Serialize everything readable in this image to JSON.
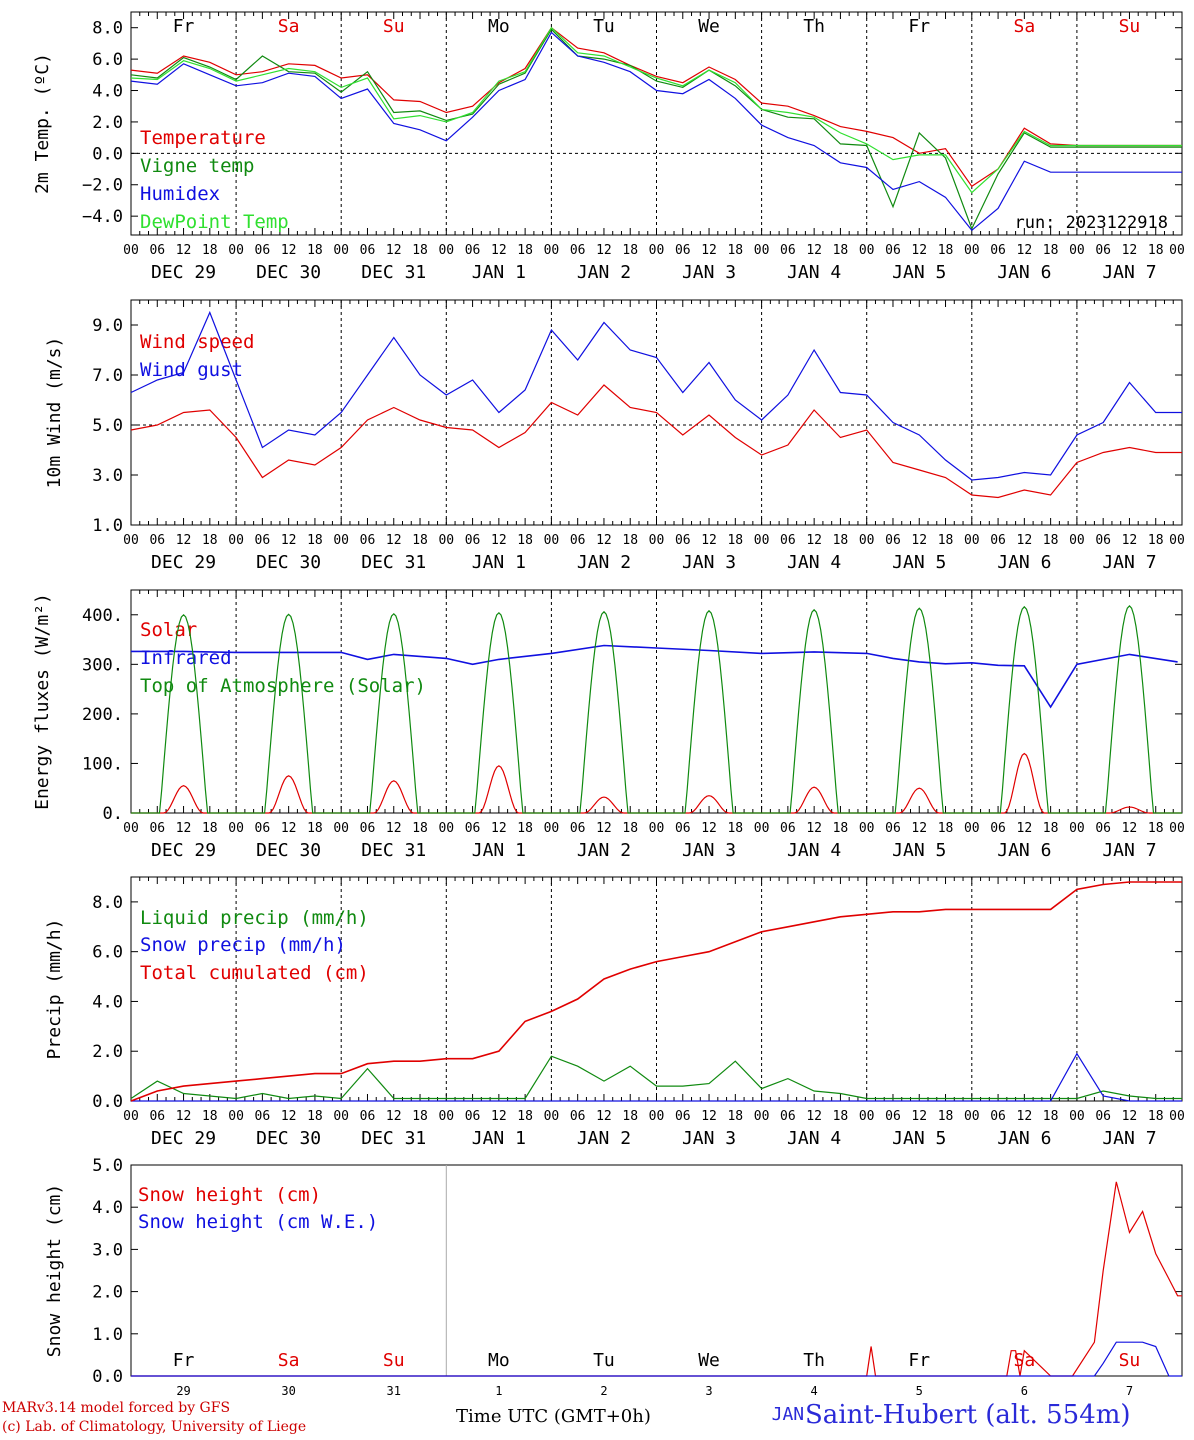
{
  "run_label": "run: 2023122918",
  "date_labels": [
    "DEC 29",
    "DEC 30",
    "DEC 31",
    "JAN  1",
    "JAN  2",
    "JAN  3",
    "JAN  4",
    "JAN  5",
    "JAN  6",
    "JAN  7"
  ],
  "hour_ticks": [
    "00",
    "06",
    "12",
    "18"
  ],
  "hour_tick_end": "00",
  "weekdays": [
    {
      "label": "Fr",
      "color": "#000000"
    },
    {
      "label": "Sa",
      "color": "#e00000"
    },
    {
      "label": "Su",
      "color": "#e00000"
    },
    {
      "label": "Mo",
      "color": "#000000"
    },
    {
      "label": "Tu",
      "color": "#000000"
    },
    {
      "label": "We",
      "color": "#000000"
    },
    {
      "label": "Th",
      "color": "#000000"
    },
    {
      "label": "Fr",
      "color": "#000000"
    },
    {
      "label": "Sa",
      "color": "#e00000"
    },
    {
      "label": "Su",
      "color": "#e00000"
    }
  ],
  "bottom_day_numbers": [
    "29",
    "30",
    "31",
    "1",
    "2",
    "3",
    "4",
    "5",
    "6",
    "7"
  ],
  "bottom_month_label": "JAN",
  "footer": {
    "credit_line1": "MARv3.14 model forced by GFS",
    "credit_line2": "(c) Lab. of Climatology, University of Liege",
    "time_axis": "Time UTC (GMT+0h)",
    "station": "Saint-Hubert (alt. 554m)"
  },
  "colors": {
    "red": "#e00000",
    "green": "#108a10",
    "blue": "#1010e0",
    "light_green": "#30e030"
  },
  "chart_data": [
    {
      "type": "line",
      "ylabel": "2m Temp. (ºC)",
      "ylim": [
        -5.2,
        9.0
      ],
      "yticks": [
        8.0,
        6.0,
        4.0,
        2.0,
        0.0,
        -2.0,
        -4.0
      ],
      "ytick_labels": [
        "8.0",
        "6.0",
        "4.0",
        "2.0",
        "0.0",
        "−2.0",
        "−4.0"
      ],
      "refline": 0,
      "x_hours": [
        0,
        6,
        12,
        18,
        24,
        30,
        36,
        42,
        48,
        54,
        60,
        66,
        72,
        78,
        84,
        90,
        96,
        102,
        108,
        114,
        120,
        126,
        132,
        138,
        144,
        150,
        156,
        162,
        168,
        174,
        180,
        186,
        192,
        198,
        204,
        210,
        216,
        222,
        228,
        234
      ],
      "series": [
        {
          "name": "Temperature",
          "color": "#e00000",
          "values": [
            5.3,
            5.1,
            6.2,
            5.8,
            5.0,
            5.2,
            5.7,
            5.6,
            4.8,
            5.0,
            3.4,
            3.3,
            2.6,
            3.0,
            4.5,
            5.4,
            8.0,
            6.7,
            6.4,
            5.6,
            4.9,
            4.5,
            5.5,
            4.7,
            3.2,
            3.0,
            2.4,
            1.7,
            1.4,
            1.0,
            0.0,
            0.3,
            -2.1,
            -1.0,
            1.6,
            0.6,
            0.5,
            0.5,
            0.5,
            0.5
          ]
        },
        {
          "name": "Vigne temp",
          "color": "#108a10",
          "values": [
            5.0,
            4.8,
            6.1,
            5.5,
            4.7,
            6.2,
            5.2,
            5.1,
            3.9,
            5.2,
            2.6,
            2.7,
            2.1,
            2.5,
            4.4,
            5.1,
            7.9,
            6.2,
            6.0,
            5.6,
            4.6,
            4.2,
            5.3,
            4.3,
            2.8,
            2.3,
            2.2,
            0.6,
            0.5,
            -3.4,
            1.3,
            -0.3,
            -4.8,
            -1.3,
            1.3,
            0.4,
            0.4,
            0.4,
            0.4,
            0.4
          ]
        },
        {
          "name": "Humidex",
          "color": "#1010e0",
          "values": [
            4.6,
            4.4,
            5.7,
            5.0,
            4.3,
            4.5,
            5.1,
            4.9,
            3.5,
            4.1,
            1.9,
            1.5,
            0.8,
            2.3,
            4.0,
            4.7,
            7.7,
            6.2,
            5.8,
            5.2,
            4.0,
            3.8,
            4.7,
            3.5,
            1.8,
            1.0,
            0.5,
            -0.6,
            -0.9,
            -2.3,
            -1.8,
            -2.8,
            -4.9,
            -3.5,
            -0.5,
            -1.2,
            -1.2,
            -1.2,
            -1.2,
            -1.2
          ]
        },
        {
          "name": "DewPoint Temp",
          "color": "#30e030",
          "values": [
            4.8,
            4.7,
            5.9,
            5.4,
            4.6,
            5.0,
            5.4,
            5.2,
            4.2,
            4.8,
            2.2,
            2.4,
            2.0,
            2.6,
            4.6,
            5.2,
            8.0,
            6.4,
            6.2,
            5.5,
            4.8,
            4.3,
            5.3,
            4.5,
            2.8,
            2.6,
            2.3,
            1.3,
            0.6,
            -0.4,
            -0.1,
            -0.1,
            -2.5,
            -1.0,
            1.4,
            0.5,
            0.5,
            0.5,
            0.5,
            0.5
          ]
        }
      ]
    },
    {
      "type": "line",
      "ylabel": "10m Wind (m/s)",
      "ylim": [
        1.0,
        10.0
      ],
      "yticks": [
        9.0,
        7.0,
        5.0,
        3.0,
        1.0
      ],
      "ytick_labels": [
        "9.0",
        "7.0",
        "5.0",
        "3.0",
        "1.0"
      ],
      "refline": 5.0,
      "x_hours": [
        0,
        6,
        12,
        18,
        24,
        30,
        36,
        42,
        48,
        54,
        60,
        66,
        72,
        78,
        84,
        90,
        96,
        102,
        108,
        114,
        120,
        126,
        132,
        138,
        144,
        150,
        156,
        162,
        168,
        174,
        180,
        186,
        192,
        198,
        204,
        210,
        216,
        222,
        228,
        234
      ],
      "series": [
        {
          "name": "Wind speed",
          "color": "#e00000",
          "values": [
            4.8,
            5.0,
            5.5,
            5.6,
            4.5,
            2.9,
            3.6,
            3.4,
            4.1,
            5.2,
            5.7,
            5.2,
            4.9,
            4.8,
            4.1,
            4.7,
            5.9,
            5.4,
            6.6,
            5.7,
            5.5,
            4.6,
            5.4,
            4.5,
            3.8,
            4.2,
            5.6,
            4.5,
            4.8,
            3.5,
            3.2,
            2.9,
            2.2,
            2.1,
            2.4,
            2.2,
            3.5,
            3.9,
            4.1,
            3.9
          ]
        },
        {
          "name": "Wind gust",
          "color": "#1010e0",
          "values": [
            6.3,
            6.8,
            7.1,
            9.5,
            6.8,
            4.1,
            4.8,
            4.6,
            5.5,
            7.0,
            8.5,
            7.0,
            6.2,
            6.8,
            5.5,
            6.4,
            8.8,
            7.6,
            9.1,
            8.0,
            7.7,
            6.3,
            7.5,
            6.0,
            5.2,
            6.2,
            8.0,
            6.3,
            6.2,
            5.1,
            4.6,
            3.6,
            2.8,
            2.9,
            3.1,
            3.0,
            4.6,
            5.1,
            6.7,
            5.5
          ]
        }
      ]
    },
    {
      "type": "line",
      "ylabel": "Energy fluxes (W/m²)",
      "ylim": [
        0,
        450
      ],
      "yticks": [
        400,
        300,
        200,
        100,
        0
      ],
      "ytick_labels": [
        "400.",
        "300.",
        "200.",
        "100.",
        "0."
      ],
      "series": [
        {
          "name": "Solar",
          "color": "#e00000",
          "daily_peak": [
            55,
            75,
            65,
            95,
            32,
            35,
            52,
            50,
            120,
            12
          ]
        },
        {
          "name": "Infrared",
          "color": "#1010e0",
          "x_hours": [
            0,
            12,
            24,
            36,
            48,
            54,
            60,
            72,
            78,
            84,
            96,
            108,
            120,
            132,
            144,
            156,
            168,
            174,
            180,
            186,
            192,
            198,
            204,
            210,
            216,
            228,
            239
          ],
          "values": [
            326,
            326,
            324,
            324,
            324,
            310,
            320,
            312,
            300,
            310,
            322,
            338,
            333,
            328,
            322,
            325,
            322,
            312,
            305,
            301,
            303,
            298,
            297,
            214,
            300,
            320,
            305
          ]
        },
        {
          "name": "Top of Atmosphere (Solar)",
          "color": "#108a10",
          "daily_peak": [
            400,
            401,
            402,
            404,
            406,
            408,
            410,
            413,
            416,
            418
          ]
        }
      ]
    },
    {
      "type": "line",
      "ylabel": "Precip (mm/h)",
      "ylim": [
        0,
        9.0
      ],
      "yticks": [
        8.0,
        6.0,
        4.0,
        2.0,
        0.0
      ],
      "ytick_labels": [
        "8.0",
        "6.0",
        "4.0",
        "2.0",
        "0.0"
      ],
      "x_hours": [
        0,
        6,
        12,
        18,
        24,
        30,
        36,
        42,
        48,
        54,
        60,
        66,
        72,
        78,
        84,
        90,
        96,
        102,
        108,
        114,
        120,
        126,
        132,
        138,
        144,
        150,
        156,
        162,
        168,
        174,
        180,
        186,
        192,
        198,
        204,
        210,
        216,
        222,
        228,
        234
      ],
      "series": [
        {
          "name": "Liquid precip (mm/h)",
          "color": "#108a10",
          "values": [
            0.1,
            0.8,
            0.3,
            0.2,
            0.1,
            0.3,
            0.1,
            0.2,
            0.1,
            1.3,
            0.1,
            0.1,
            0.1,
            0.1,
            0.1,
            0.1,
            1.8,
            1.4,
            0.8,
            1.4,
            0.6,
            0.6,
            0.7,
            1.6,
            0.5,
            0.9,
            0.4,
            0.3,
            0.1,
            0.1,
            0.1,
            0.1,
            0.1,
            0.1,
            0.1,
            0.1,
            0.1,
            0.4,
            0.2,
            0.1
          ]
        },
        {
          "name": "Snow precip (mm/h)",
          "color": "#1010e0",
          "values": [
            0,
            0,
            0,
            0,
            0,
            0,
            0,
            0,
            0,
            0,
            0,
            0,
            0,
            0,
            0,
            0,
            0,
            0,
            0,
            0,
            0,
            0,
            0,
            0,
            0,
            0,
            0,
            0,
            0,
            0,
            0,
            0,
            0,
            0,
            0,
            0,
            1.9,
            0.2,
            0,
            0
          ]
        },
        {
          "name": "Total cumulated (cm)",
          "color": "#e00000",
          "values": [
            0.0,
            0.4,
            0.6,
            0.7,
            0.8,
            0.9,
            1.0,
            1.1,
            1.1,
            1.5,
            1.6,
            1.6,
            1.7,
            1.7,
            2.0,
            3.2,
            3.6,
            4.1,
            4.9,
            5.3,
            5.6,
            5.8,
            6.0,
            6.4,
            6.8,
            7.0,
            7.2,
            7.4,
            7.5,
            7.6,
            7.6,
            7.7,
            7.7,
            7.7,
            7.7,
            7.7,
            8.5,
            8.7,
            8.8,
            8.8
          ]
        }
      ]
    },
    {
      "type": "line",
      "ylabel": "Snow height (cm)",
      "ylim": [
        0,
        5.0
      ],
      "yticks": [
        5.0,
        4.0,
        3.0,
        2.0,
        1.0,
        0.0
      ],
      "ytick_labels": [
        "5.0",
        "4.0",
        "3.0",
        "2.0",
        "1.0",
        "0.0"
      ],
      "x_hours": [
        0,
        168,
        169,
        170,
        171,
        200,
        201,
        202,
        203,
        204,
        210,
        213,
        214,
        215,
        220,
        222,
        225,
        228,
        231,
        234,
        237,
        239
      ],
      "series": [
        {
          "name": "Snow height (cm)",
          "color": "#e00000",
          "values": [
            0,
            0,
            0.7,
            0,
            0,
            0,
            0.6,
            0.6,
            0,
            0.6,
            0,
            0,
            0,
            0,
            0.8,
            2.5,
            4.6,
            3.4,
            3.9,
            2.9,
            2.3,
            1.9
          ]
        },
        {
          "name": "Snow height (cm W.E.)",
          "color": "#1010e0",
          "values": [
            0,
            0,
            0,
            0,
            0,
            0,
            0,
            0,
            0,
            0,
            0,
            0,
            0,
            0,
            0,
            0.3,
            0.8,
            0.8,
            0.8,
            0.7,
            0,
            0
          ]
        }
      ]
    }
  ]
}
